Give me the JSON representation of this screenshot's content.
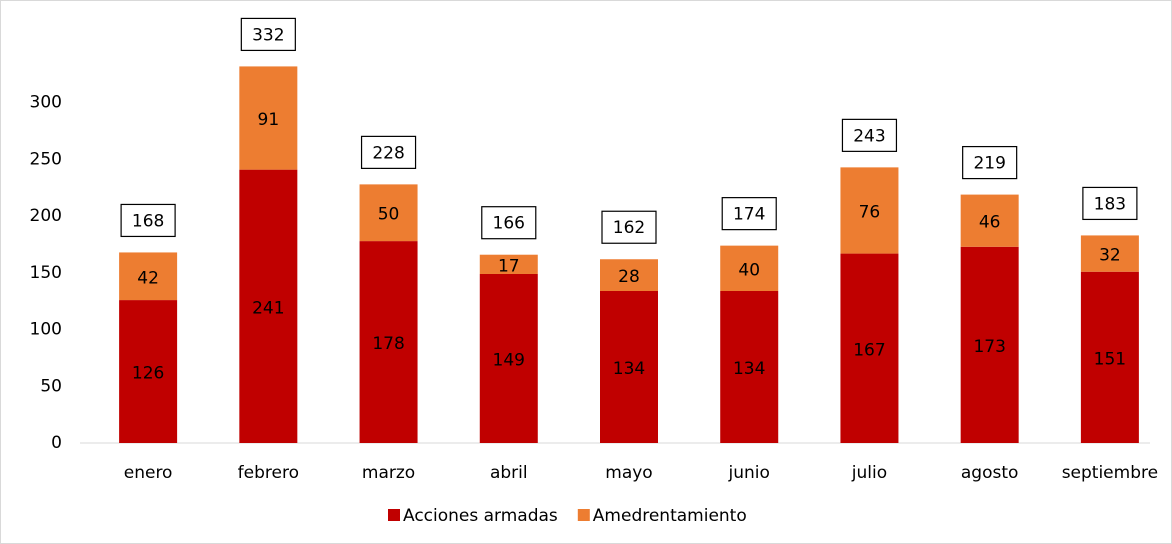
{
  "chart_data": {
    "type": "stacked_bar",
    "categories": [
      "enero",
      "febrero",
      "marzo",
      "abril",
      "mayo",
      "junio",
      "julio",
      "agosto",
      "septiembre"
    ],
    "series": [
      {
        "name": "Acciones armadas",
        "color": "#c00000",
        "values": [
          126,
          241,
          178,
          149,
          134,
          134,
          167,
          173,
          151
        ]
      },
      {
        "name": "Amedrentamiento",
        "color": "#ed7d31",
        "values": [
          42,
          91,
          50,
          17,
          28,
          40,
          76,
          46,
          32
        ]
      }
    ],
    "totals": [
      168,
      332,
      228,
      166,
      162,
      174,
      243,
      219,
      183
    ],
    "ylim": [
      0,
      350
    ],
    "yticks": [
      0,
      50,
      100,
      150,
      200,
      250,
      300
    ],
    "grid": false,
    "legend": "bottom"
  }
}
